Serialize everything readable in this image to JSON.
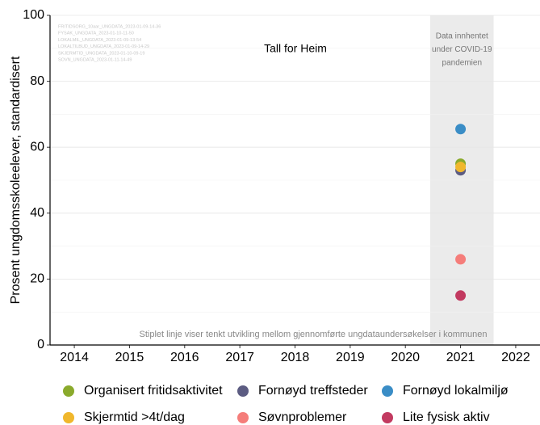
{
  "chart_data": {
    "type": "scatter",
    "title": "Tall for Heim",
    "ylabel": "Prosent ungdomsskoleelever, standardisert",
    "source_notes": [
      "FRITIDSORG_10aar_UNGDATA_2023-01-09-14-36",
      "FYSAK_UNGDATA_2023-01-10-11-50",
      "LOKALMIL_UNGDATA_2023-01-09-13-54",
      "LOKALTILBUD_UNGDATA_2023-01-09-14-29",
      "SKJERMTID_UNGDATA_2023-01-10-09-19",
      "SOVN_UNGDATA_2023-01-11-14-49"
    ],
    "shade": {
      "range": [
        2020.45,
        2021.6
      ],
      "color": "#ebebeb",
      "label_lines": [
        "Data innhentet",
        "under COVID-19",
        "pandemien"
      ]
    },
    "footnote": "Stiplet linje viser tenkt utvikling mellom gjennomførte ungdataundersøkelser i kommunen",
    "xlim": [
      2013.56,
      2022.44
    ],
    "xticks": [
      2014,
      2015,
      2016,
      2017,
      2018,
      2019,
      2020,
      2021,
      2022
    ],
    "ylim": [
      0,
      100
    ],
    "yticks": [
      0,
      20,
      40,
      60,
      80,
      100
    ],
    "yminor": [
      10,
      30,
      50,
      70,
      90
    ],
    "grid": true,
    "legend": "bottom",
    "series": [
      {
        "name": "Organisert fritidsaktivitet",
        "color": "#8aaa2c",
        "x": [
          2021
        ],
        "values": [
          55
        ]
      },
      {
        "name": "Fornøyd treffsteder",
        "color": "#5c5c82",
        "x": [
          2021
        ],
        "values": [
          53
        ]
      },
      {
        "name": "Fornøyd lokalmiljø",
        "color": "#3a8dc6",
        "x": [
          2021
        ],
        "values": [
          65.5
        ]
      },
      {
        "name": "Skjermtid >4t/dag",
        "color": "#f0b72c",
        "x": [
          2021
        ],
        "values": [
          54
        ]
      },
      {
        "name": "Søvnproblemer",
        "color": "#f57d7a",
        "x": [
          2021
        ],
        "values": [
          26
        ]
      },
      {
        "name": "Lite fysisk aktiv",
        "color": "#c23a60",
        "x": [
          2021
        ],
        "values": [
          15
        ]
      }
    ]
  }
}
